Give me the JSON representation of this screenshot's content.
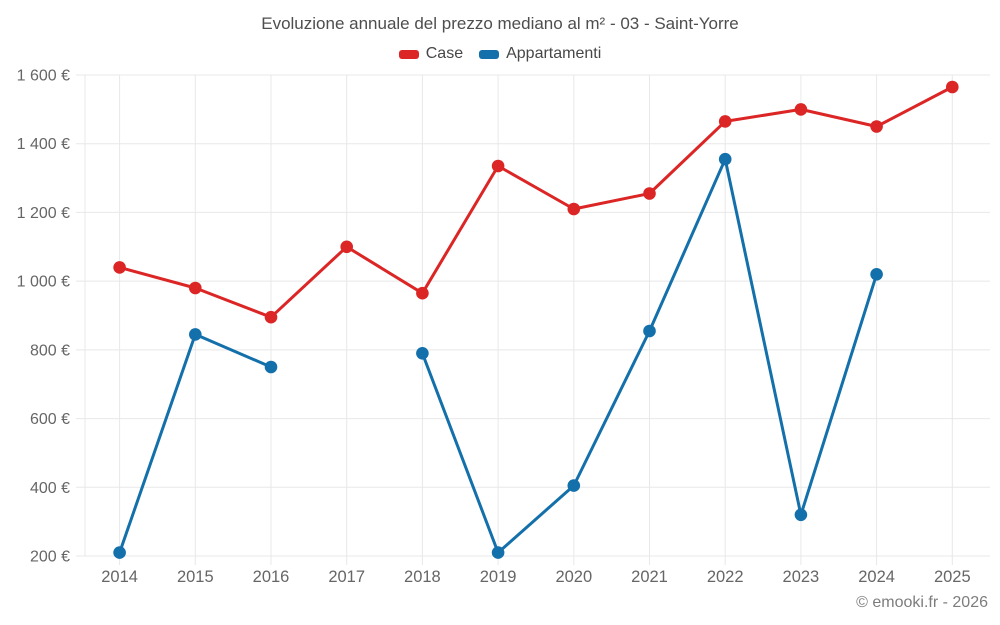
{
  "chart_data": {
    "type": "line",
    "title": "Evoluzione annuale del prezzo mediano al m² - 03 - Saint-Yorre",
    "categories": [
      "2014",
      "2015",
      "2016",
      "2017",
      "2018",
      "2019",
      "2020",
      "2021",
      "2022",
      "2023",
      "2024",
      "2025"
    ],
    "series": [
      {
        "name": "Case",
        "color": "#dc2626",
        "values": [
          1040,
          980,
          895,
          1100,
          965,
          1335,
          1210,
          1255,
          1465,
          1500,
          1450,
          1565
        ]
      },
      {
        "name": "Appartamenti",
        "color": "#1470aa",
        "values": [
          210,
          845,
          750,
          null,
          790,
          210,
          405,
          855,
          1355,
          320,
          1020,
          null
        ]
      }
    ],
    "xlabel": "",
    "ylabel": "",
    "ylim": [
      200,
      1600
    ],
    "y_tick_step": 200,
    "y_ticks": [
      "200 €",
      "400 €",
      "600 €",
      "800 €",
      "1 000 €",
      "1 200 €",
      "1 400 €",
      "1 600 €"
    ],
    "grid": true,
    "legend_position": "top",
    "marker": "circle",
    "gaps_note": "Appartamenti has no data for 2017 and 2025 (line break)"
  },
  "colors": {
    "grid": "#e8e8e8",
    "axis_label": "#666666",
    "title": "#4e4e4e",
    "watermark": "#7d7d7d"
  },
  "footer": {
    "watermark": "© emooki.fr - 2026"
  }
}
